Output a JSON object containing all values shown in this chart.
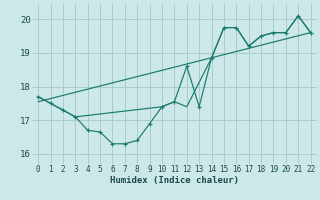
{
  "title": "",
  "xlabel": "Humidex (Indice chaleur)",
  "bg_color": "#cce8e8",
  "grid_color": "#aacccc",
  "line_color": "#1a7a6e",
  "xlim": [
    -0.5,
    22.5
  ],
  "ylim": [
    15.7,
    20.45
  ],
  "yticks": [
    16,
    17,
    18,
    19,
    20
  ],
  "xticks": [
    0,
    1,
    2,
    3,
    4,
    5,
    6,
    7,
    8,
    9,
    10,
    11,
    12,
    13,
    14,
    15,
    16,
    17,
    18,
    19,
    20,
    21,
    22
  ],
  "series1_x": [
    0,
    1,
    2,
    3,
    4,
    5,
    6,
    7,
    8,
    9,
    10,
    11,
    12,
    13,
    14,
    15,
    16,
    17,
    18,
    19,
    20,
    21,
    22
  ],
  "series1_y": [
    17.7,
    17.5,
    17.3,
    17.1,
    16.7,
    16.65,
    16.3,
    16.3,
    16.4,
    16.9,
    17.4,
    17.55,
    18.6,
    17.4,
    18.85,
    19.75,
    19.75,
    19.2,
    19.5,
    19.6,
    19.6,
    20.1,
    19.6
  ],
  "series2_x": [
    0,
    1,
    2,
    3,
    10,
    11,
    12,
    14,
    15,
    16,
    17,
    18,
    19,
    20,
    21,
    22
  ],
  "series2_y": [
    17.7,
    17.5,
    17.3,
    17.1,
    17.4,
    17.55,
    17.4,
    18.85,
    19.75,
    19.75,
    19.2,
    19.5,
    19.6,
    19.6,
    20.1,
    19.6
  ],
  "series3_x": [
    0,
    22
  ],
  "series3_y": [
    17.55,
    19.6
  ]
}
